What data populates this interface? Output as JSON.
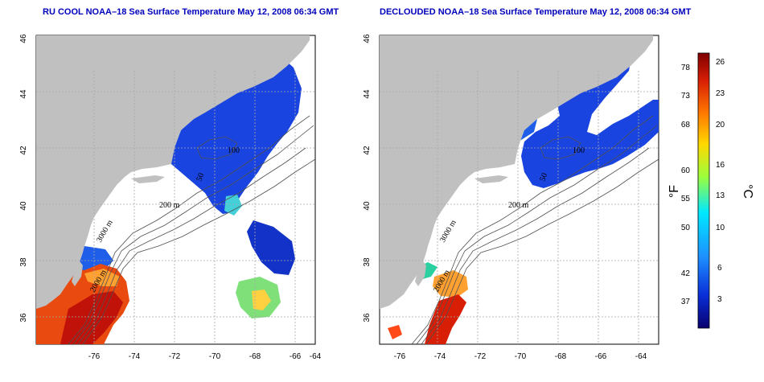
{
  "titles": {
    "left": "RU COOL NOAA–18 Sea Surface Temperature May 12, 2008 06:34 GMT",
    "right": "DECLOUDED NOAA–18 Sea Surface Temperature May 12, 2008 06:34 GMT"
  },
  "axes": {
    "lon_ticks": [
      "-76",
      "-74",
      "-72",
      "-70",
      "-68",
      "-66",
      "-64"
    ],
    "lat_ticks": [
      "46",
      "44",
      "42",
      "40",
      "38",
      "36"
    ]
  },
  "contour_labels": {
    "left": [
      "100",
      "200 m",
      "2000 m",
      "3000 m",
      "50"
    ],
    "right": [
      "100",
      "200 m",
      "2000 m",
      "3000 m",
      "50"
    ]
  },
  "colorbar": {
    "fahrenheit_label": "°F",
    "celsius_label": "°C",
    "fahrenheit_ticks": [
      "78",
      "73",
      "68",
      "60",
      "55",
      "50",
      "42",
      "37"
    ],
    "celsius_ticks": [
      "26",
      "23",
      "20",
      "16",
      "13",
      "10",
      "6",
      "3"
    ],
    "colors": [
      "#7f0000",
      "#d81e05",
      "#ff7a00",
      "#ffd700",
      "#9cff3c",
      "#00e8ff",
      "#1e90ff",
      "#0a2fd8",
      "#08006e"
    ]
  },
  "colors": {
    "land": "#c0c0c0",
    "title": "#0000bb",
    "grid": "#a8a8a8"
  }
}
